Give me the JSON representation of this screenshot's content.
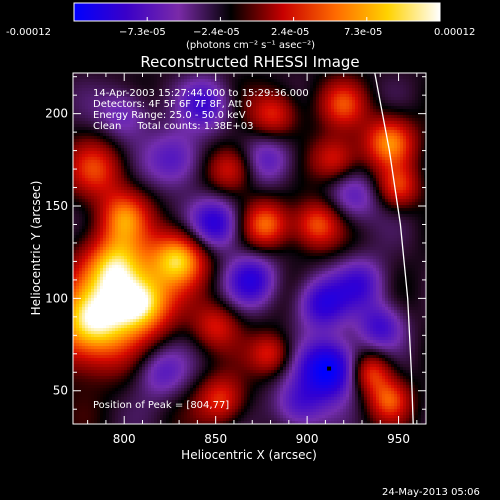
{
  "colorbar": {
    "ticks": [
      "-0.00012",
      "−7.3e-05",
      "−2.4e-05",
      "2.4e-05",
      "7.3e-05",
      "0.00012"
    ],
    "unit_label": "(photons cm⁻² s⁻¹ asec⁻²)",
    "range": [
      -0.00012,
      0.00012
    ],
    "colors": [
      "#0000ff",
      "#3a00c8",
      "#7a2aa8",
      "#000000",
      "#c80000",
      "#ff6a00",
      "#ffd200",
      "#ffffff"
    ]
  },
  "chart_data": {
    "type": "heatmap",
    "title": "Reconstructed RHESSI Image",
    "xlabel": "Heliocentric X (arcsec)",
    "ylabel": "Heliocentric Y (arcsec)",
    "xlim": [
      772,
      965
    ],
    "ylim": [
      32,
      222
    ],
    "xticks": [
      800,
      850,
      900,
      950
    ],
    "yticks": [
      50,
      100,
      150,
      200
    ],
    "annotations": [
      "14-Apr-2003 15:27:44.000 to 15:29:36.000",
      "Detectors: 4F 5F 6F 7F 8F, Att 0",
      "Energy Range: 25.0 - 50.0 keV",
      "Clean     Total counts: 1.38E+03"
    ],
    "peak_label": "Position of Peak = [804,77]",
    "peak": [
      804,
      77
    ],
    "marker": [
      912,
      62
    ],
    "limb_curve": [
      [
        937,
        222
      ],
      [
        945,
        180
      ],
      [
        951,
        140
      ],
      [
        955,
        100
      ],
      [
        957,
        60
      ],
      [
        958,
        32
      ]
    ],
    "blobs": [
      {
        "x": 782,
        "y": 85,
        "v": 1.0,
        "s": 16
      },
      {
        "x": 795,
        "y": 118,
        "v": 0.85,
        "s": 13
      },
      {
        "x": 785,
        "y": 170,
        "v": 0.5,
        "s": 11
      },
      {
        "x": 800,
        "y": 145,
        "v": 0.6,
        "s": 10
      },
      {
        "x": 810,
        "y": 97,
        "v": 0.9,
        "s": 12
      },
      {
        "x": 830,
        "y": 122,
        "v": 0.9,
        "s": 11
      },
      {
        "x": 850,
        "y": 85,
        "v": 0.45,
        "s": 9
      },
      {
        "x": 853,
        "y": 45,
        "v": 0.55,
        "s": 9
      },
      {
        "x": 858,
        "y": 170,
        "v": 0.55,
        "s": 9
      },
      {
        "x": 878,
        "y": 140,
        "v": 0.7,
        "s": 9
      },
      {
        "x": 880,
        "y": 70,
        "v": 0.5,
        "s": 8
      },
      {
        "x": 882,
        "y": 200,
        "v": 0.55,
        "s": 9
      },
      {
        "x": 905,
        "y": 140,
        "v": 0.6,
        "s": 9
      },
      {
        "x": 915,
        "y": 175,
        "v": 0.55,
        "s": 9
      },
      {
        "x": 920,
        "y": 205,
        "v": 0.5,
        "s": 9
      },
      {
        "x": 935,
        "y": 60,
        "v": 0.6,
        "s": 8
      },
      {
        "x": 945,
        "y": 45,
        "v": 0.55,
        "s": 8
      },
      {
        "x": 945,
        "y": 185,
        "v": 0.7,
        "s": 10
      },
      {
        "x": 950,
        "y": 160,
        "v": 0.5,
        "s": 8
      },
      {
        "x": 828,
        "y": 175,
        "v": -0.5,
        "s": 11
      },
      {
        "x": 850,
        "y": 140,
        "v": -0.7,
        "s": 10
      },
      {
        "x": 845,
        "y": 205,
        "v": -0.5,
        "s": 10
      },
      {
        "x": 870,
        "y": 110,
        "v": -0.6,
        "s": 10
      },
      {
        "x": 880,
        "y": 175,
        "v": -0.45,
        "s": 10
      },
      {
        "x": 908,
        "y": 97,
        "v": -0.6,
        "s": 10
      },
      {
        "x": 912,
        "y": 62,
        "v": -1.0,
        "s": 11
      },
      {
        "x": 930,
        "y": 108,
        "v": -0.5,
        "s": 10
      },
      {
        "x": 925,
        "y": 155,
        "v": -0.4,
        "s": 10
      },
      {
        "x": 895,
        "y": 42,
        "v": -0.5,
        "s": 10
      },
      {
        "x": 820,
        "y": 60,
        "v": -0.4,
        "s": 10
      },
      {
        "x": 800,
        "y": 200,
        "v": -0.4,
        "s": 10
      },
      {
        "x": 940,
        "y": 85,
        "v": -0.5,
        "s": 9
      }
    ],
    "legend": "none",
    "grid": false
  },
  "timestamp": "24-May-2013 05:06"
}
